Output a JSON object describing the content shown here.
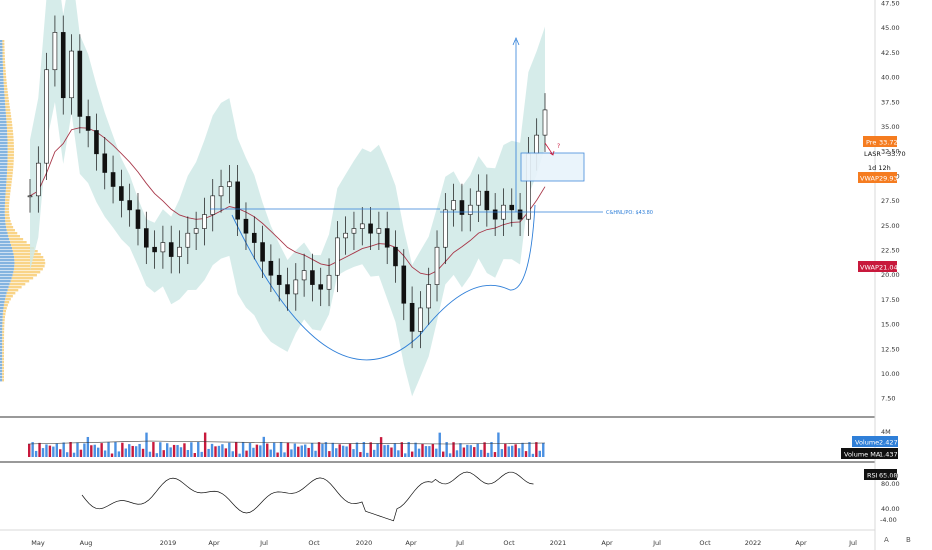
{
  "chart_data": {
    "type": "candlestick",
    "symbol": "LASR",
    "interval": "1d 12h",
    "price_axis": {
      "ticks": [
        "47.50",
        "45.00",
        "42.50",
        "40.00",
        "37.50",
        "35.00",
        "32.50",
        "30.00",
        "27.50",
        "25.00",
        "22.50",
        "20.00",
        "17.50",
        "15.00",
        "12.50",
        "10.00",
        "7.50"
      ],
      "range": [
        5.0,
        47.5
      ]
    },
    "time_axis": {
      "labels": [
        "May",
        "Aug",
        "2019",
        "Apr",
        "Jul",
        "Oct",
        "2020",
        "Apr",
        "Jul",
        "Oct",
        "2021",
        "Apr",
        "Jul",
        "Oct",
        "2022",
        "Apr",
        "Jul"
      ]
    },
    "price_labels": [
      {
        "name": "Pre",
        "value": "33.72",
        "color": "#f57c20"
      },
      {
        "name": "LASR",
        "value": "33.70",
        "color": "#111111"
      },
      {
        "name": "VWAP",
        "value": "29.93",
        "color": "#f57c20"
      },
      {
        "name": "VWAP",
        "value": "21.04",
        "color": "#c8193c"
      }
    ],
    "annotations": {
      "ipo_line": "C&HNL/PO: $43.80",
      "question_mark": "?"
    },
    "price_series": [
      {
        "d": "2018-05",
        "c": 24.5
      },
      {
        "d": "2018-05b",
        "c": 28.0
      },
      {
        "d": "2018-05c",
        "c": 38.0
      },
      {
        "d": "2018-06",
        "c": 42.0
      },
      {
        "d": "2018-06b",
        "c": 35.0
      },
      {
        "d": "2018-07",
        "c": 40.0
      },
      {
        "d": "2018-07b",
        "c": 33.0
      },
      {
        "d": "2018-08",
        "c": 31.5
      },
      {
        "d": "2018-08b",
        "c": 29.0
      },
      {
        "d": "2018-09",
        "c": 27.0
      },
      {
        "d": "2018-09b",
        "c": 25.5
      },
      {
        "d": "2018-10",
        "c": 24.0
      },
      {
        "d": "2018-10b",
        "c": 23.0
      },
      {
        "d": "2018-11",
        "c": 21.0
      },
      {
        "d": "2018-11b",
        "c": 19.0
      },
      {
        "d": "2018-12",
        "c": 18.5
      },
      {
        "d": "2018-12b",
        "c": 19.5
      },
      {
        "d": "2019-01",
        "c": 18.0
      },
      {
        "d": "2019-01b",
        "c": 19.0
      },
      {
        "d": "2019-02",
        "c": 20.5
      },
      {
        "d": "2019-02b",
        "c": 21.0
      },
      {
        "d": "2019-03",
        "c": 22.5
      },
      {
        "d": "2019-03b",
        "c": 24.5
      },
      {
        "d": "2019-04",
        "c": 25.5
      },
      {
        "d": "2019-04b",
        "c": 26.0
      },
      {
        "d": "2019-05",
        "c": 22.0
      },
      {
        "d": "2019-05b",
        "c": 20.5
      },
      {
        "d": "2019-06",
        "c": 19.5
      },
      {
        "d": "2019-06b",
        "c": 17.5
      },
      {
        "d": "2019-07",
        "c": 16.0
      },
      {
        "d": "2019-07b",
        "c": 15.0
      },
      {
        "d": "2019-08",
        "c": 14.0
      },
      {
        "d": "2019-08b",
        "c": 15.5
      },
      {
        "d": "2019-09",
        "c": 16.5
      },
      {
        "d": "2019-09b",
        "c": 15.0
      },
      {
        "d": "2019-10",
        "c": 14.5
      },
      {
        "d": "2019-10b",
        "c": 16.0
      },
      {
        "d": "2019-11",
        "c": 20.0
      },
      {
        "d": "2019-11b",
        "c": 20.5
      },
      {
        "d": "2019-12",
        "c": 21.0
      },
      {
        "d": "2019-12b",
        "c": 21.5
      },
      {
        "d": "2020-01",
        "c": 20.5
      },
      {
        "d": "2020-01b",
        "c": 21.0
      },
      {
        "d": "2020-02",
        "c": 19.0
      },
      {
        "d": "2020-02b",
        "c": 17.0
      },
      {
        "d": "2020-03",
        "c": 13.0
      },
      {
        "d": "2020-03b",
        "c": 10.0
      },
      {
        "d": "2020-04",
        "c": 12.5
      },
      {
        "d": "2020-04b",
        "c": 15.0
      },
      {
        "d": "2020-05",
        "c": 19.0
      },
      {
        "d": "2020-05b",
        "c": 23.0
      },
      {
        "d": "2020-06",
        "c": 24.0
      },
      {
        "d": "2020-06b",
        "c": 22.5
      },
      {
        "d": "2020-07",
        "c": 23.5
      },
      {
        "d": "2020-07b",
        "c": 25.0
      },
      {
        "d": "2020-08",
        "c": 23.0
      },
      {
        "d": "2020-08b",
        "c": 22.0
      },
      {
        "d": "2020-09",
        "c": 23.5
      },
      {
        "d": "2020-09b",
        "c": 23.0
      },
      {
        "d": "2020-10",
        "c": 22.0
      },
      {
        "d": "2020-10b",
        "c": 29.0
      },
      {
        "d": "2020-11",
        "c": 31.0
      },
      {
        "d": "2020-11b",
        "c": 33.7
      }
    ],
    "volume": {
      "ticks": [
        "4M"
      ],
      "labels": [
        {
          "name": "Volume",
          "value": "2.427M",
          "color": "#2f7fd8"
        },
        {
          "name": "Volume MA",
          "value": "1.437M",
          "color": "#111111"
        }
      ]
    },
    "rsi": {
      "label": {
        "name": "RSI",
        "value": "65.08"
      },
      "ticks": [
        "80.00",
        "40.00"
      ],
      "extra_ticks": [
        "4.00",
        "-4.00"
      ]
    },
    "bottom_right_buttons": [
      "A",
      "B"
    ]
  }
}
